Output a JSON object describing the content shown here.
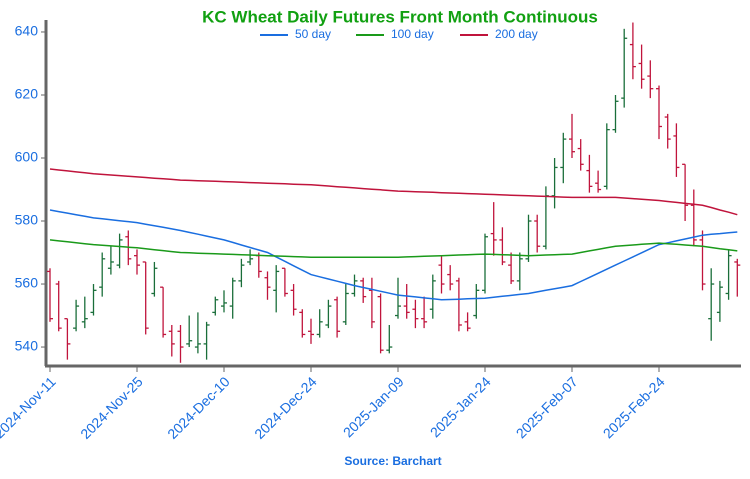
{
  "chart_data": {
    "type": "ohlc",
    "title": "KC Wheat Daily Futures Front Month Continuous",
    "source": "Source: Barchart",
    "legend": "top",
    "up_color": "#1a6e3a",
    "down_color": "#c0143c",
    "categories": [
      "2024-Nov-11",
      null,
      null,
      null,
      null,
      null,
      null,
      null,
      null,
      null,
      "2024-Nov-25",
      null,
      null,
      null,
      null,
      null,
      null,
      null,
      null,
      null,
      "2024-Dec-10",
      null,
      null,
      null,
      null,
      null,
      null,
      null,
      null,
      null,
      "2024-Dec-24",
      null,
      null,
      null,
      null,
      null,
      null,
      null,
      null,
      null,
      "2025-Jan-09",
      null,
      null,
      null,
      null,
      null,
      null,
      null,
      null,
      null,
      "2025-Jan-24",
      null,
      null,
      null,
      null,
      null,
      null,
      null,
      null,
      null,
      "2025-Feb-07",
      null,
      null,
      null,
      null,
      null,
      null,
      null,
      null,
      null,
      "2025-Feb-24",
      null,
      null,
      null,
      null,
      null,
      null,
      null,
      null,
      null
    ],
    "ohlc": [
      [
        564,
        565,
        548,
        549
      ],
      [
        560,
        561,
        545,
        546
      ],
      [
        549,
        549,
        536,
        541
      ],
      [
        546,
        555,
        545,
        553
      ],
      [
        548,
        556,
        546,
        549
      ],
      [
        551,
        560,
        550,
        558
      ],
      [
        559,
        570,
        556,
        568
      ],
      [
        565,
        572,
        563,
        567
      ],
      [
        566,
        576,
        565,
        574
      ],
      [
        575,
        577,
        566,
        568
      ],
      [
        569,
        571,
        563,
        566
      ],
      [
        567,
        567,
        544,
        546
      ],
      [
        557,
        567,
        556,
        565
      ],
      [
        559,
        559,
        543,
        544
      ],
      [
        545,
        547,
        537,
        541
      ],
      [
        545,
        547,
        535,
        540
      ],
      [
        541,
        550,
        540,
        542
      ],
      [
        540,
        551,
        538,
        541
      ],
      [
        541,
        548,
        536,
        547
      ],
      [
        551,
        556,
        550,
        555
      ],
      [
        553,
        558,
        551,
        554
      ],
      [
        553,
        562,
        549,
        561
      ],
      [
        561,
        568,
        559,
        566
      ],
      [
        567,
        571,
        566,
        568
      ],
      [
        569,
        570,
        562,
        564
      ],
      [
        562,
        564,
        555,
        559
      ],
      [
        558,
        566,
        551,
        564
      ],
      [
        565,
        565,
        556,
        557
      ],
      [
        558,
        560,
        550,
        552
      ],
      [
        551,
        552,
        543,
        544
      ],
      [
        545,
        549,
        541,
        544
      ],
      [
        544,
        552,
        543,
        548
      ],
      [
        547,
        555,
        546,
        553
      ],
      [
        555,
        556,
        543,
        545
      ],
      [
        548,
        560,
        547,
        557
      ],
      [
        557,
        563,
        556,
        561
      ],
      [
        561,
        562,
        554,
        556
      ],
      [
        558,
        562,
        546,
        548
      ],
      [
        556,
        557,
        538,
        539
      ],
      [
        539,
        547,
        538,
        540
      ],
      [
        550,
        562,
        549,
        553
      ],
      [
        553,
        560,
        549,
        551
      ],
      [
        552,
        555,
        546,
        549
      ],
      [
        549,
        556,
        546,
        548
      ],
      [
        552,
        563,
        549,
        561
      ],
      [
        566,
        569,
        557,
        560
      ],
      [
        563,
        566,
        558,
        560
      ],
      [
        561,
        562,
        545,
        547
      ],
      [
        548,
        551,
        545,
        546
      ],
      [
        550,
        560,
        549,
        558
      ],
      [
        558,
        576,
        557,
        575
      ],
      [
        576,
        586,
        569,
        574
      ],
      [
        574,
        578,
        566,
        567
      ],
      [
        566,
        570,
        560,
        561
      ],
      [
        561,
        570,
        558,
        568
      ],
      [
        568,
        582,
        567,
        580
      ],
      [
        580,
        582,
        570,
        572
      ],
      [
        572,
        591,
        571,
        588
      ],
      [
        588,
        600,
        584,
        597
      ],
      [
        597,
        608,
        592,
        606
      ],
      [
        606,
        614,
        600,
        602
      ],
      [
        603,
        606,
        596,
        598
      ],
      [
        596,
        601,
        589,
        591
      ],
      [
        592,
        596,
        589,
        590
      ],
      [
        591,
        611,
        590,
        609
      ],
      [
        609,
        620,
        608,
        618
      ],
      [
        619,
        641,
        616,
        638
      ],
      [
        636,
        643,
        625,
        629
      ],
      [
        630,
        636,
        622,
        625
      ],
      [
        626,
        631,
        619,
        622
      ],
      [
        622,
        623,
        606,
        610
      ],
      [
        613,
        614,
        603,
        606
      ],
      [
        607,
        611,
        594,
        597
      ],
      [
        598,
        598,
        580,
        585
      ],
      [
        585,
        590,
        572,
        574
      ],
      [
        574,
        577,
        558,
        560
      ],
      [
        549,
        565,
        542,
        560
      ],
      [
        551,
        561,
        548,
        559
      ],
      [
        557,
        571,
        555,
        569
      ],
      [
        567,
        568,
        556,
        566
      ]
    ],
    "series": [
      {
        "name": "50 day",
        "color": "#1a6ee0",
        "values": [
          583.5,
          583,
          582.5,
          582,
          581.5,
          581,
          580.7,
          580.4,
          580.1,
          579.8,
          579.5,
          579,
          578.5,
          578,
          577.5,
          577,
          576.4,
          575.8,
          575.2,
          574.6,
          574,
          573.2,
          572.4,
          571.6,
          570.8,
          570,
          568.6,
          567.2,
          565.8,
          564.4,
          563,
          562.3,
          561.6,
          560.9,
          560.2,
          559.5,
          558.9,
          558.3,
          557.7,
          557.1,
          556.5,
          556.2,
          555.9,
          555.6,
          555.3,
          555,
          555.1,
          555.2,
          555.3,
          555.4,
          555.5,
          555.8,
          556.1,
          556.4,
          556.7,
          557,
          557.5,
          558,
          558.5,
          559,
          559.5,
          560.8,
          562.1,
          563.4,
          564.7,
          566,
          567.3,
          568.6,
          569.9,
          571.2,
          572.5,
          573.1,
          573.7,
          574.3,
          574.9,
          575.5,
          575.8,
          576,
          576.3,
          576.5
        ]
      },
      {
        "name": "100 day",
        "color": "#1a9a1a",
        "values": [
          574,
          573.7,
          573.4,
          573.1,
          572.8,
          572.5,
          572.3,
          572.1,
          571.9,
          571.7,
          571.5,
          571.2,
          570.9,
          570.6,
          570.3,
          570,
          569.9,
          569.8,
          569.7,
          569.6,
          569.5,
          569.4,
          569.3,
          569.2,
          569.1,
          569,
          568.9,
          568.8,
          568.7,
          568.6,
          568.5,
          568.5,
          568.5,
          568.5,
          568.5,
          568.5,
          568.5,
          568.5,
          568.5,
          568.5,
          568.5,
          568.6,
          568.7,
          568.8,
          568.9,
          569,
          569.1,
          569.2,
          569.3,
          569.4,
          569.5,
          569.4,
          569.3,
          569.2,
          569.1,
          569,
          569.1,
          569.2,
          569.3,
          569.4,
          569.5,
          570,
          570.5,
          571,
          571.5,
          572,
          572.2,
          572.4,
          572.6,
          572.8,
          573,
          572.8,
          572.6,
          572.4,
          572.2,
          572,
          571.6,
          571.2,
          570.9,
          570.5
        ]
      },
      {
        "name": "200 day",
        "color": "#c0143c",
        "values": [
          596.5,
          596.2,
          595.9,
          595.6,
          595.3,
          595,
          594.8,
          594.6,
          594.4,
          594.2,
          594,
          593.8,
          593.6,
          593.4,
          593.2,
          593,
          592.9,
          592.8,
          592.7,
          592.6,
          592.5,
          592.4,
          592.3,
          592.2,
          592.1,
          592,
          591.9,
          591.8,
          591.7,
          591.6,
          591.5,
          591.3,
          591.1,
          590.9,
          590.7,
          590.5,
          590.3,
          590.1,
          589.9,
          589.7,
          589.5,
          589.4,
          589.3,
          589.2,
          589.1,
          589,
          588.9,
          588.8,
          588.7,
          588.6,
          588.5,
          588.4,
          588.3,
          588.2,
          588.1,
          588,
          587.9,
          587.8,
          587.7,
          587.6,
          587.5,
          587.5,
          587.5,
          587.5,
          587.5,
          587.5,
          587.3,
          587.1,
          586.9,
          586.7,
          586.5,
          586.2,
          585.9,
          585.6,
          585.3,
          585,
          584.3,
          583.5,
          582.8,
          582
        ]
      }
    ],
    "ylim": [
      534.3,
      643.8
    ],
    "yticks": [
      540,
      560,
      580,
      600,
      620,
      640
    ]
  }
}
